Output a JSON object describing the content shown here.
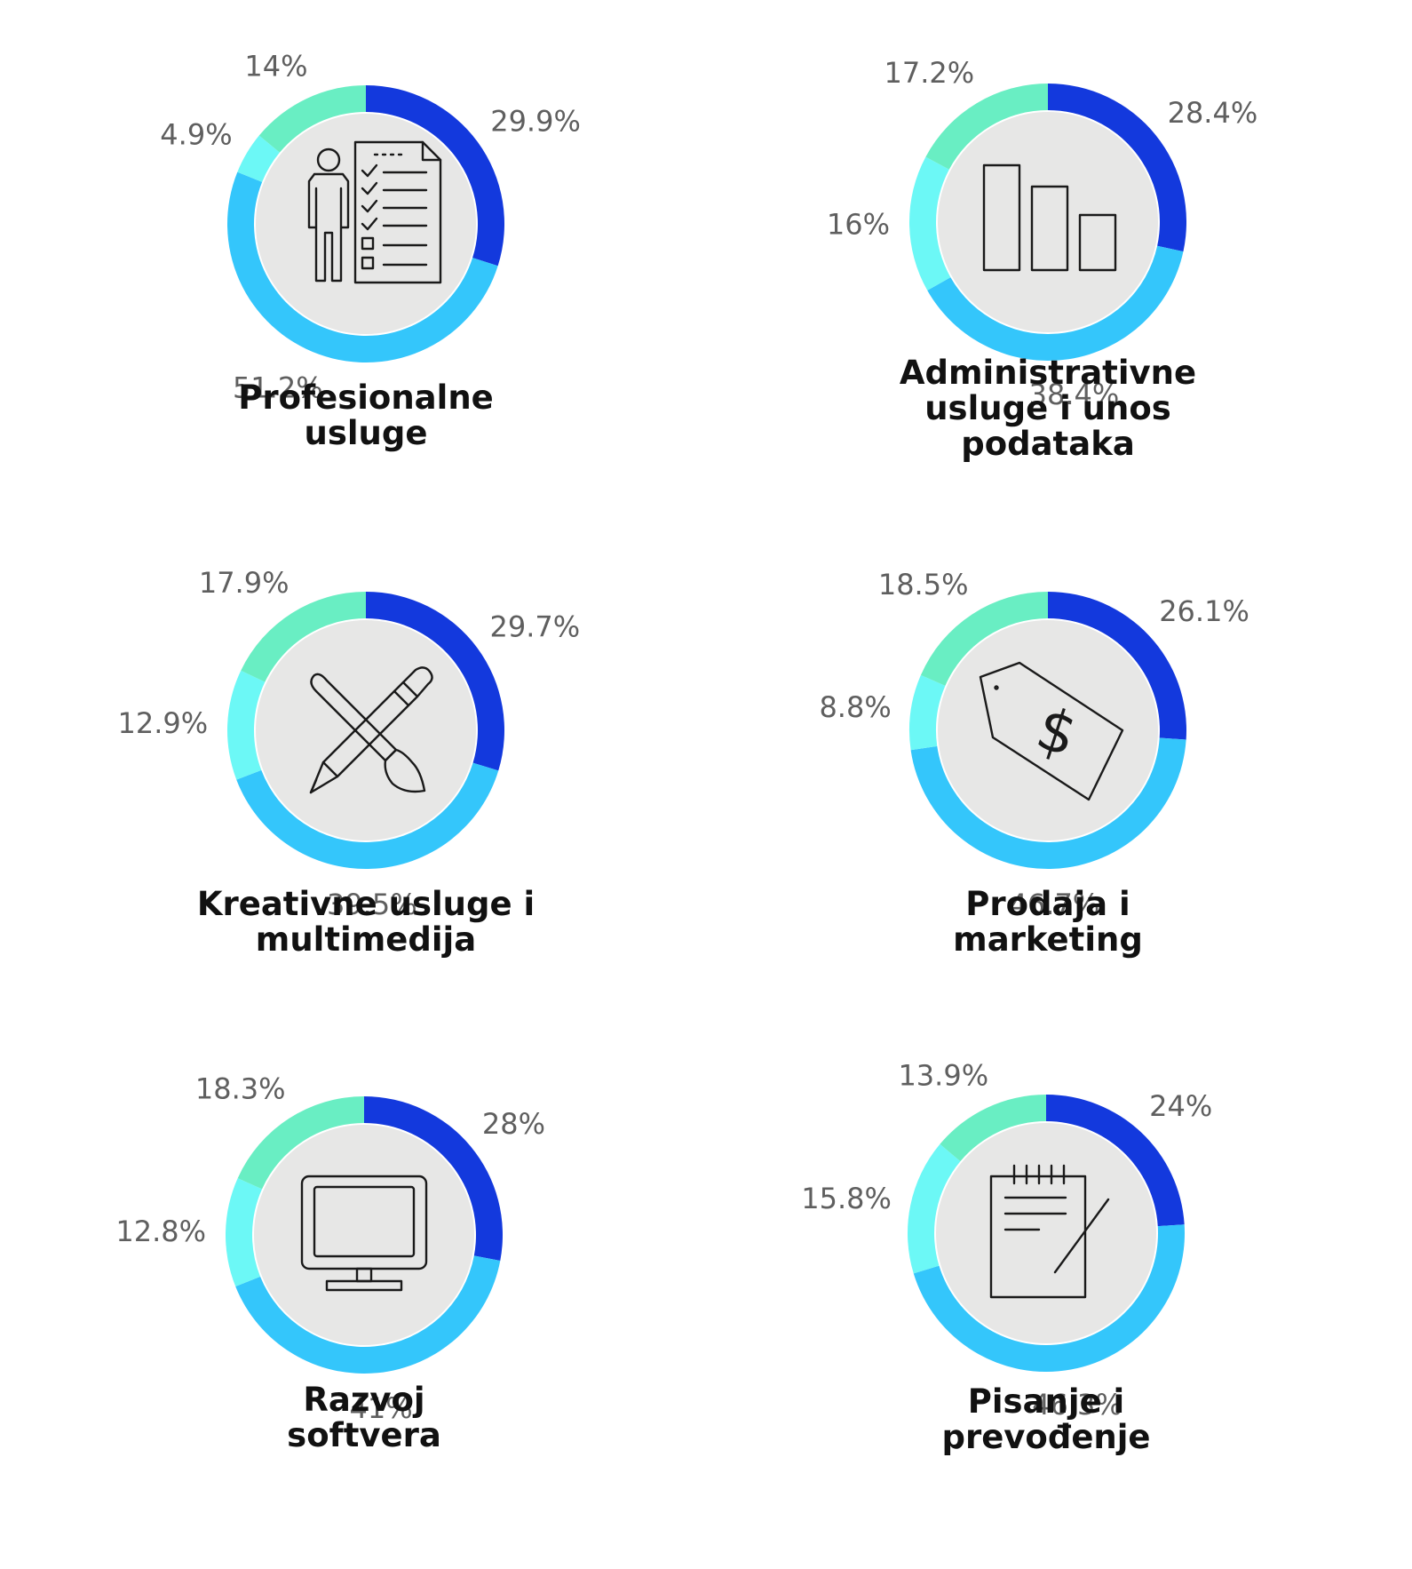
{
  "colors": {
    "segments": [
      "#1339dd",
      "#34c6fb",
      "#6cf8f6",
      "#69eec3"
    ],
    "inner": "#e7e7e6",
    "label": "#5f5f5f",
    "title": "#111111"
  },
  "chart_data": [
    {
      "type": "pie",
      "title_lines": [
        "Profesionalne",
        "usluge"
      ],
      "icon": "professional-services-icon",
      "values": [
        29.9,
        51.2,
        4.9,
        14
      ],
      "labels": [
        "29.9%",
        "51.2%",
        "4.9%",
        "14%"
      ]
    },
    {
      "type": "pie",
      "title_lines": [
        "Administrativne",
        "usluge i unos",
        "podataka"
      ],
      "icon": "bar-chart-icon",
      "values": [
        28.4,
        38.4,
        16,
        17.2
      ],
      "labels": [
        "28.4%",
        "38.4%",
        "16%",
        "17.2%"
      ]
    },
    {
      "type": "pie",
      "title_lines": [
        "Kreativne usluge i",
        "multimedija"
      ],
      "icon": "pencil-brush-icon",
      "values": [
        29.7,
        39.5,
        12.9,
        17.9
      ],
      "labels": [
        "29.7%",
        "39.5%",
        "12.9%",
        "17.9%"
      ]
    },
    {
      "type": "pie",
      "title_lines": [
        "Prodaja i",
        "marketing"
      ],
      "icon": "price-tag-icon",
      "values": [
        26.1,
        46.7,
        8.8,
        18.5
      ],
      "labels": [
        "26.1%",
        "46.7%",
        "8.8%",
        "18.5%"
      ]
    },
    {
      "type": "pie",
      "title_lines": [
        "Razvoj",
        "softvera"
      ],
      "icon": "monitor-icon",
      "values": [
        28,
        41,
        12.8,
        18.3
      ],
      "labels": [
        "28%",
        "41%",
        "12.8%",
        "18.3%"
      ]
    },
    {
      "type": "pie",
      "title_lines": [
        "Pisanje i",
        "prevođenje"
      ],
      "icon": "notepad-icon",
      "values": [
        24,
        46.3,
        15.8,
        13.9
      ],
      "labels": [
        "24%",
        "46.3%",
        "15.8%",
        "13.9%"
      ]
    }
  ]
}
